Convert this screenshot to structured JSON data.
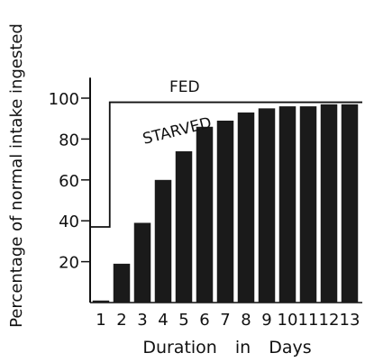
{
  "chart_data": {
    "type": "bar",
    "title": "",
    "xlabel": "Duration in Days",
    "ylabel": "Percentage of normal intake ingested",
    "categories": [
      "1",
      "2",
      "3",
      "4",
      "5",
      "6",
      "7",
      "8",
      "9",
      "10",
      "11",
      "12",
      "13"
    ],
    "ylim": [
      0,
      110
    ],
    "yticks": [
      20,
      40,
      60,
      80,
      100
    ],
    "grid": false,
    "legend": "none",
    "bar_color": "#1a1a1a",
    "series": [
      {
        "name": "STARVED",
        "values": [
          1,
          19,
          39,
          60,
          74,
          86,
          89,
          93,
          95,
          96,
          96,
          97,
          97
        ]
      },
      {
        "name": "FED",
        "type": "line",
        "values": [
          37,
          98,
          98,
          98,
          98,
          98,
          98,
          98,
          98,
          98,
          98,
          98,
          98
        ]
      }
    ]
  }
}
